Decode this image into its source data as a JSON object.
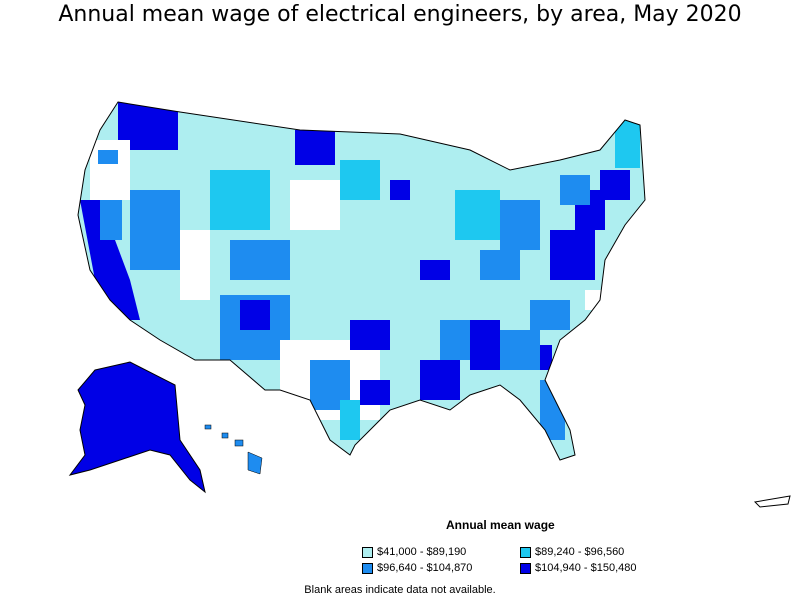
{
  "title": "Annual mean wage of electrical engineers, by area, May 2020",
  "legend": {
    "title": "Annual mean wage",
    "items": [
      {
        "label": "$41,000 - $89,190",
        "color": "#aeeef0"
      },
      {
        "label": "$89,240 - $96,560",
        "color": "#1ec8f0"
      },
      {
        "label": "$96,640 - $104,870",
        "color": "#1e8cf0"
      },
      {
        "label": "$104,940 - $150,480",
        "color": "#0000e6"
      }
    ]
  },
  "note": "Blank areas indicate data not available.",
  "colors": {
    "blank": "#ffffff",
    "border": "#000000"
  }
}
